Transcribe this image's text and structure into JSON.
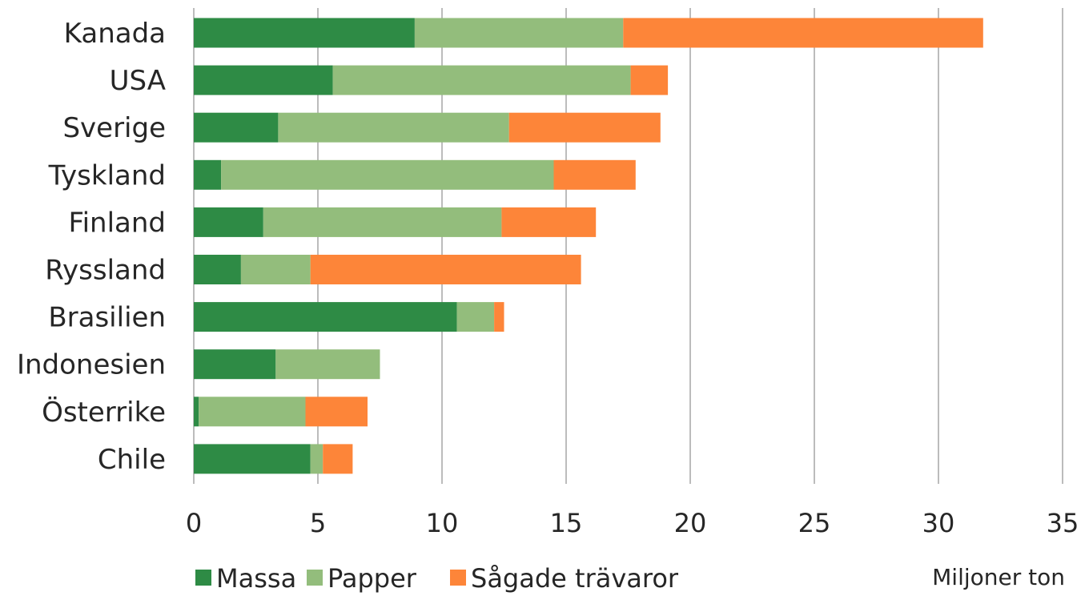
{
  "chart_data": {
    "type": "bar",
    "orientation": "horizontal",
    "stacked": true,
    "categories": [
      "Kanada",
      "USA",
      "Sverige",
      "Tyskland",
      "Finland",
      "Ryssland",
      "Brasilien",
      "Indonesien",
      "Österrike",
      "Chile"
    ],
    "series": [
      {
        "name": "Massa",
        "color": "#2e8b45",
        "values": [
          8.9,
          5.6,
          3.4,
          1.1,
          2.8,
          1.9,
          10.6,
          3.3,
          0.2,
          4.7
        ]
      },
      {
        "name": "Papper",
        "color": "#93bd7c",
        "values": [
          8.4,
          12.0,
          9.3,
          13.4,
          9.6,
          2.8,
          1.5,
          4.2,
          4.3,
          0.5
        ]
      },
      {
        "name": "Sågade trävaror",
        "color": "#fd8539",
        "values": [
          14.5,
          1.5,
          6.1,
          3.3,
          3.8,
          10.9,
          0.4,
          0.0,
          2.5,
          1.2
        ]
      }
    ],
    "xlim": [
      0,
      35
    ],
    "xticks": [
      "0",
      "5",
      "10",
      "15",
      "20",
      "25",
      "30",
      "35"
    ],
    "xlabel": "Miljoner ton",
    "ylabel": "",
    "title": "",
    "grid": "vertical",
    "legend_position": "bottom-left"
  }
}
